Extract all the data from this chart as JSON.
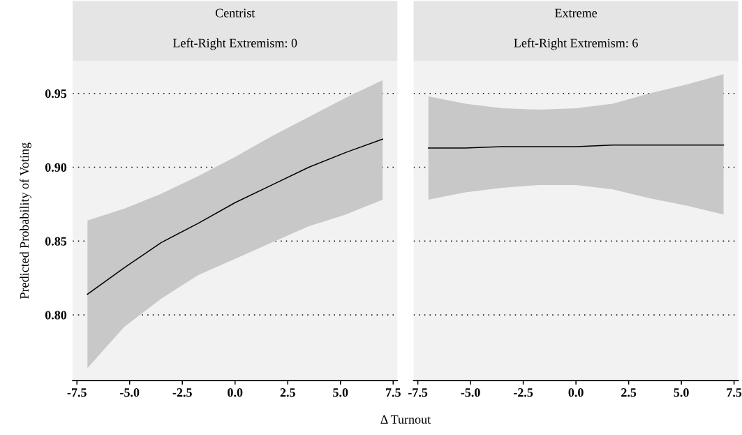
{
  "chart_data": [
    {
      "type": "line",
      "title": "Centrist",
      "subtitle": "Left-Right Extremism: 0",
      "xlabel": "Δ Turnout",
      "ylabel": "Predicted Probability of Voting",
      "xlim": [
        -7.7,
        7.7
      ],
      "xticks": [
        {
          "value": -7.5,
          "label": "-7.5"
        },
        {
          "value": -5,
          "label": "-5.0"
        },
        {
          "value": -2.5,
          "label": "-2.5"
        },
        {
          "value": 0,
          "label": "0.0"
        },
        {
          "value": 2.5,
          "label": "2.5"
        },
        {
          "value": 5,
          "label": "5.0"
        },
        {
          "value": 7.5,
          "label": "7.5"
        }
      ],
      "ylim": [
        0.7555,
        0.972
      ],
      "yticks": [
        {
          "value": 0.8,
          "label": "0.80"
        },
        {
          "value": 0.85,
          "label": "0.85"
        },
        {
          "value": 0.9,
          "label": "0.90"
        },
        {
          "value": 0.95,
          "label": "0.95"
        }
      ],
      "grid": "y",
      "line_style": "solid",
      "series": [
        {
          "color": "#000000",
          "x": [
            -7,
            -5.25,
            -3.5,
            -1.75,
            0,
            1.75,
            3.5,
            5.25,
            7
          ],
          "values": [
            0.814,
            0.832,
            0.849,
            0.862,
            0.876,
            0.888,
            0.9,
            0.91,
            0.919
          ],
          "lower": [
            0.764,
            0.792,
            0.811,
            0.827,
            0.838,
            0.849,
            0.86,
            0.868,
            0.878
          ],
          "upper": [
            0.864,
            0.872,
            0.882,
            0.894,
            0.907,
            0.921,
            0.934,
            0.947,
            0.959
          ]
        }
      ]
    },
    {
      "type": "line",
      "title": "Extreme",
      "subtitle": "Left-Right Extremism: 6",
      "tick_labels": "x",
      "xlim": [
        -7.7,
        7.7
      ],
      "xticks": [
        {
          "value": -7.5,
          "label": "-7.5"
        },
        {
          "value": -5,
          "label": "-5.0"
        },
        {
          "value": -2.5,
          "label": "-2.5"
        },
        {
          "value": 0,
          "label": "0.0"
        },
        {
          "value": 2.5,
          "label": "2.5"
        },
        {
          "value": 5,
          "label": "5.0"
        },
        {
          "value": 7.5,
          "label": "7.5"
        }
      ],
      "ylim": [
        0.7555,
        0.972
      ],
      "yticks": [
        {
          "value": 0.8,
          "label": null
        },
        {
          "value": 0.85,
          "label": null
        },
        {
          "value": 0.9,
          "label": null
        },
        {
          "value": 0.95,
          "label": null
        }
      ],
      "grid": "y",
      "line_style": "solid",
      "series": [
        {
          "color": "#000000",
          "x": [
            -7,
            -5.25,
            -3.5,
            -1.75,
            0,
            1.75,
            3.5,
            5.25,
            7
          ],
          "values": [
            0.913,
            0.913,
            0.914,
            0.914,
            0.914,
            0.915,
            0.915,
            0.915,
            0.915
          ],
          "lower": [
            0.878,
            0.883,
            0.886,
            0.888,
            0.888,
            0.885,
            0.879,
            0.874,
            0.868
          ],
          "upper": [
            0.948,
            0.943,
            0.94,
            0.939,
            0.94,
            0.943,
            0.95,
            0.956,
            0.963
          ]
        }
      ]
    }
  ]
}
